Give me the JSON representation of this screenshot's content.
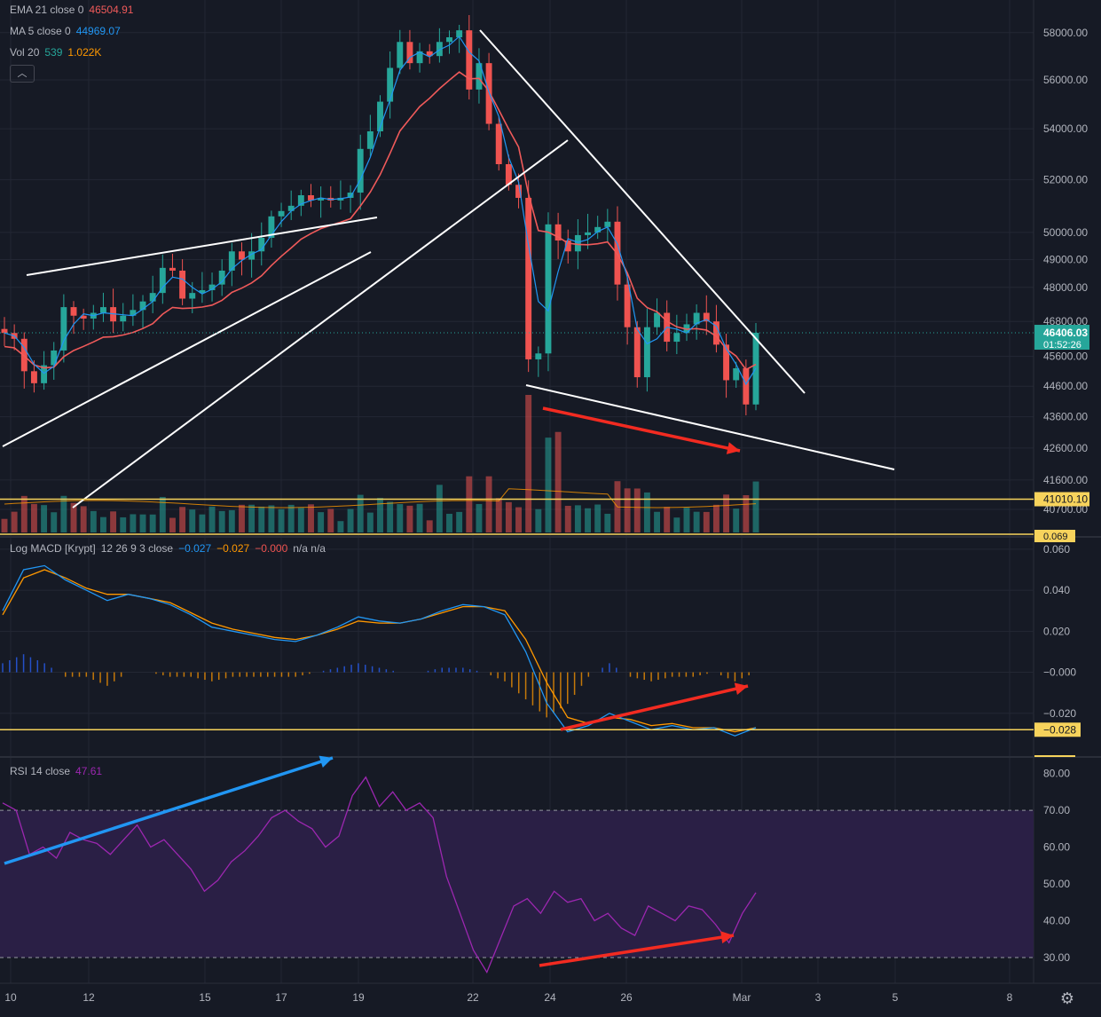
{
  "legend": {
    "ema": {
      "label": "EMA 21 close 0",
      "value": "46504.91",
      "color": "#f23645"
    },
    "ma": {
      "label": "MA 5 close 0",
      "value": "44969.07",
      "color": "#2196f3"
    },
    "vol": {
      "label": "Vol 20",
      "v1": "539",
      "v2": "1.022K"
    },
    "macd": {
      "label": "Log MACD [Krypt]",
      "params": "12 26 9 3 close",
      "v1": "−0.027",
      "v2": "−0.027",
      "v3": "−0.000",
      "v4": "n/a n/a"
    },
    "rsi": {
      "label": "RSI 14 close",
      "value": "47.61"
    }
  },
  "collapse_icon": "chevron-up-icon",
  "settings_icon": "gear-icon",
  "colors": {
    "background": "#161a25",
    "grid": "#232734",
    "up": "#26a69a",
    "down": "#ef5350",
    "ema": "#f05a5a",
    "ma": "#2196f3",
    "drawing": "#ffffff",
    "hline": "#f7d35c",
    "arrow_red": "#f22b21",
    "arrow_blue": "#2196f3",
    "rsi_line": "#9c27b0",
    "rsi_band": "#2a1f45"
  },
  "chart_data": [
    {
      "type": "candlestick",
      "title": "",
      "price_axis": [
        "58000.00",
        "56000.00",
        "54000.00",
        "52000.00",
        "50000.00",
        "49000.00",
        "48000.00",
        "46800.00",
        "45600.00",
        "44600.00",
        "43600.00",
        "42600.00",
        "41600.00",
        "40700.00"
      ],
      "price_axis_scale": "log",
      "current_price": "46406.03",
      "countdown": "01:52:26",
      "hline_price": "41010.10",
      "x_labels": [
        "10",
        "12",
        "15",
        "17",
        "19",
        "22",
        "24",
        "26",
        "Mar",
        "3",
        "5",
        "8"
      ],
      "ylim": [
        40300,
        58800
      ],
      "candles_approx_close": [
        46400,
        46200,
        45100,
        44700,
        45300,
        45800,
        47300,
        47000,
        46900,
        47100,
        47300,
        46800,
        47000,
        47200,
        47500,
        47800,
        48700,
        48600,
        47600,
        47800,
        47900,
        48100,
        48600,
        49300,
        49000,
        49300,
        49800,
        50600,
        50800,
        51000,
        51400,
        51200,
        51300,
        51200,
        51300,
        51500,
        53200,
        53900,
        55100,
        56500,
        57600,
        56700,
        57200,
        57000,
        57600,
        57800,
        58100,
        55600,
        56700,
        54200,
        52600,
        51800,
        51300,
        45500,
        45700,
        50300,
        49700,
        49300,
        49900,
        50000,
        50200,
        50400,
        48100,
        46600,
        44900,
        46600,
        47100,
        46100,
        46400,
        46700,
        47100,
        46800,
        46000,
        44800,
        45200,
        44000,
        46406
      ],
      "ema21": "red line following price, ending 46504.91",
      "ma5": "blue line following price, ending 44969.07"
    },
    {
      "type": "bar",
      "title": "Vol 20",
      "values_approx": [
        539,
        1022
      ],
      "value_labels": [
        "539",
        "1.022K"
      ]
    },
    {
      "type": "line",
      "title": "Log MACD [Krypt]",
      "y_axis": [
        "0.060",
        "0.040",
        "0.020",
        "−0.000",
        "−0.020"
      ],
      "ylim": [
        -0.04,
        0.066
      ],
      "hline_value": "−0.028",
      "top_label": "0.069",
      "series": [
        {
          "name": "MACD",
          "values": [
            0.03,
            0.05,
            0.052,
            0.045,
            0.04,
            0.035,
            0.038,
            0.036,
            0.033,
            0.028,
            0.022,
            0.02,
            0.018,
            0.016,
            0.015,
            0.018,
            0.022,
            0.027,
            0.025,
            0.024,
            0.026,
            0.03,
            0.033,
            0.032,
            0.028,
            0.01,
            -0.015,
            -0.029,
            -0.026,
            -0.02,
            -0.024,
            -0.028,
            -0.026,
            -0.028,
            -0.027,
            -0.031,
            -0.027
          ]
        },
        {
          "name": "Signal",
          "values": [
            0.028,
            0.046,
            0.05,
            0.046,
            0.041,
            0.038,
            0.038,
            0.036,
            0.034,
            0.029,
            0.024,
            0.021,
            0.019,
            0.017,
            0.016,
            0.018,
            0.021,
            0.025,
            0.024,
            0.024,
            0.026,
            0.029,
            0.032,
            0.032,
            0.03,
            0.016,
            -0.005,
            -0.022,
            -0.025,
            -0.022,
            -0.023,
            -0.026,
            -0.025,
            -0.027,
            -0.027,
            -0.029,
            -0.027
          ]
        }
      ]
    },
    {
      "type": "line",
      "title": "RSI 14 close",
      "y_axis": [
        "80.00",
        "70.00",
        "60.00",
        "50.00",
        "40.00",
        "30.00"
      ],
      "ylim": [
        23,
        84
      ],
      "band": [
        30,
        70
      ],
      "series": [
        {
          "name": "RSI",
          "values": [
            72,
            70,
            58,
            60,
            57,
            64,
            62,
            61,
            58,
            62,
            66,
            60,
            62,
            58,
            54,
            48,
            51,
            56,
            59,
            63,
            68,
            70,
            67,
            65,
            60,
            63,
            74,
            79,
            71,
            75,
            70,
            72,
            68,
            52,
            42,
            32,
            26,
            35,
            44,
            46,
            42,
            48,
            45,
            46,
            40,
            42,
            38,
            36,
            44,
            42,
            40,
            44,
            43,
            39,
            34,
            42,
            47.61
          ]
        }
      ]
    }
  ]
}
